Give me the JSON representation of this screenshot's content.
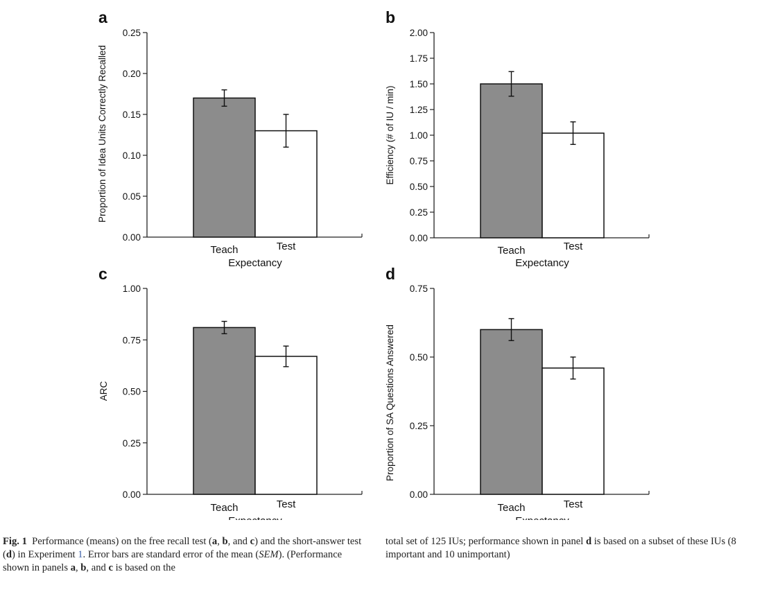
{
  "chart_data": [
    {
      "type": "bar",
      "panel": "a",
      "categories": [
        "Teach",
        "Test"
      ],
      "values": [
        0.17,
        0.13
      ],
      "errors": [
        0.01,
        0.02
      ],
      "ylabel": "Proportion of Idea Units Correctly Recalled",
      "xlabel": "Expectancy",
      "ylim": [
        0,
        0.25
      ],
      "yticks": [
        "0.00",
        "0.05",
        "0.10",
        "0.15",
        "0.20",
        "0.25"
      ],
      "colors": [
        "#8c8c8c",
        "#ffffff"
      ]
    },
    {
      "type": "bar",
      "panel": "b",
      "categories": [
        "Teach",
        "Test"
      ],
      "values": [
        1.5,
        1.02
      ],
      "errors": [
        0.12,
        0.11
      ],
      "ylabel": "Efficiency (# of IU / min)",
      "xlabel": "Expectancy",
      "ylim": [
        0,
        2
      ],
      "yticks": [
        "0.00",
        "0.25",
        "0.50",
        "0.75",
        "1.00",
        "1.25",
        "1.50",
        "1.75",
        "2.00"
      ],
      "colors": [
        "#8c8c8c",
        "#ffffff"
      ]
    },
    {
      "type": "bar",
      "panel": "c",
      "categories": [
        "Teach",
        "Test"
      ],
      "values": [
        0.81,
        0.67
      ],
      "errors": [
        0.03,
        0.05
      ],
      "ylabel": "ARC",
      "xlabel": "Expectancy",
      "ylim": [
        0,
        1
      ],
      "yticks": [
        "0.00",
        "0.25",
        "0.50",
        "0.75",
        "1.00"
      ],
      "colors": [
        "#8c8c8c",
        "#ffffff"
      ]
    },
    {
      "type": "bar",
      "panel": "d",
      "categories": [
        "Teach",
        "Test"
      ],
      "values": [
        0.6,
        0.46
      ],
      "errors": [
        0.04,
        0.04
      ],
      "ylabel": "Proportion of SA Questions Answered",
      "xlabel": "Expectancy",
      "ylim": [
        0,
        0.75
      ],
      "yticks": [
        "0.00",
        "0.25",
        "0.50",
        "0.75"
      ],
      "colors": [
        "#8c8c8c",
        "#ffffff"
      ]
    }
  ],
  "caption": {
    "label": "Fig. 1",
    "p1": "Performance (means) on the free recall test (",
    "a": "a",
    "c1": ", ",
    "b": "b",
    "c2": ", and ",
    "c": "c",
    "p2": ") and the short-answer test (",
    "d": "d",
    "p3": ") in Experiment ",
    "exp_ref": "1",
    "p4": ". Error bars are standard error of the mean (",
    "sem": "SEM",
    "p5": "). (Performance shown in panels ",
    "pa": "a",
    "c3": ", ",
    "pb": "b",
    "c4": ", and ",
    "pc": "c",
    "p6": " is based on the",
    "p7": "total set of 125 IUs; performance shown in panel ",
    "pd": "d",
    "p8": " is based on a subset of these IUs (8 important and 10 unimportant)"
  }
}
